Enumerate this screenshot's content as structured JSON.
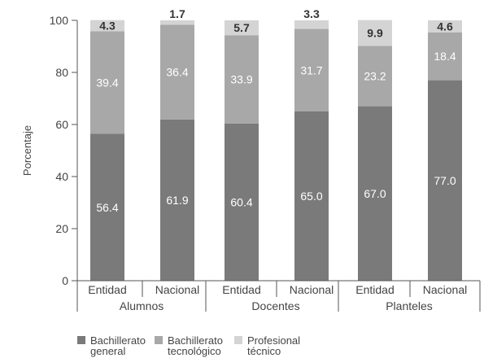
{
  "chart_data": {
    "type": "bar",
    "stacked": true,
    "ylabel": "Porcentaje",
    "ylim": [
      0,
      100
    ],
    "yticks": [
      0,
      20,
      40,
      60,
      80,
      100
    ],
    "categories": [
      "Entidad",
      "Nacional",
      "Entidad",
      "Nacional",
      "Entidad",
      "Nacional"
    ],
    "groups": [
      {
        "label": "Alumnos",
        "categories": [
          0,
          1
        ]
      },
      {
        "label": "Docentes",
        "categories": [
          2,
          3
        ]
      },
      {
        "label": "Planteles",
        "categories": [
          4,
          5
        ]
      }
    ],
    "series": [
      {
        "name": "Bachillerato general",
        "name_lines": [
          "Bachillerato",
          "general"
        ],
        "color": "#7a7a7a",
        "label_color": "#ffffff",
        "values": [
          56.4,
          61.9,
          60.4,
          65.0,
          67.0,
          77.0
        ]
      },
      {
        "name": "Bachillerato tecnológico",
        "name_lines": [
          "Bachillerato",
          "tecnológico"
        ],
        "color": "#a8a8a8",
        "label_color": "#ffffff",
        "values": [
          39.4,
          36.4,
          33.9,
          31.7,
          23.2,
          18.4
        ]
      },
      {
        "name": "Profesional técnico",
        "name_lines": [
          "Profesional",
          "técnico"
        ],
        "color": "#d4d4d4",
        "label_color": "#333333",
        "values": [
          4.3,
          1.7,
          5.7,
          3.3,
          9.9,
          4.6
        ]
      }
    ],
    "data_labels": {
      "Bachillerato general": [
        "56.4",
        "61.9",
        "60.4",
        "65.0",
        "67.0",
        "77.0"
      ],
      "Bachillerato tecnológico": [
        "39.4",
        "36.4",
        "33.9",
        "31.7",
        "23.2",
        "18.4"
      ],
      "Profesional técnico": [
        "4.3",
        "1.7",
        "5.7",
        "3.3",
        "9.9",
        "4.6"
      ]
    },
    "grid": false,
    "legend": "bottom-left"
  }
}
